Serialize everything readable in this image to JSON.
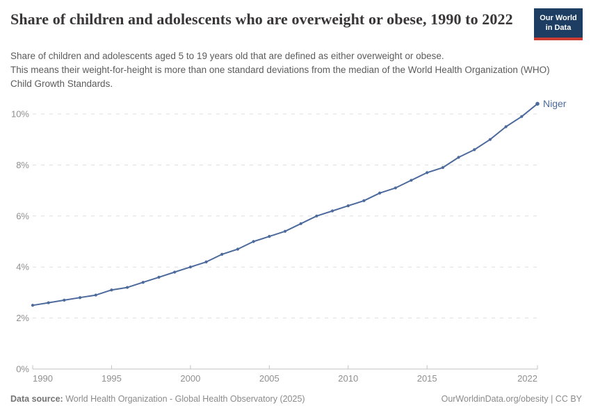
{
  "logo": {
    "line1": "Our World",
    "line2": "in Data"
  },
  "chart_data": {
    "type": "line",
    "title": "Share of children and adolescents who are overweight or obese, 1990 to 2022",
    "subtitle_lines": [
      "Share of children and adolescents aged 5 to 19 years old that are defined as either overweight or obese.",
      "This means their weight-for-height is more than one standard deviations from the median of the World Health Organization (WHO) Child Growth Standards."
    ],
    "xlim": [
      1990,
      2022
    ],
    "ylim": [
      0,
      10.4
    ],
    "grid": "horizontal-dashed",
    "legend_position": "end-of-line-label",
    "x_ticks": [
      {
        "label": "1990",
        "year": 1990
      },
      {
        "label": "1995",
        "year": 1995
      },
      {
        "label": "2000",
        "year": 2000
      },
      {
        "label": "2005",
        "year": 2005
      },
      {
        "label": "2010",
        "year": 2010
      },
      {
        "label": "2015",
        "year": 2015
      },
      {
        "label": "2022",
        "year": 2022
      }
    ],
    "y_ticks": [
      {
        "label": "0%",
        "value": 0
      },
      {
        "label": "2%",
        "value": 2
      },
      {
        "label": "4%",
        "value": 4
      },
      {
        "label": "6%",
        "value": 6
      },
      {
        "label": "8%",
        "value": 8
      },
      {
        "label": "10%",
        "value": 10
      }
    ],
    "series": [
      {
        "name": "Niger",
        "color": "#4c6a9c",
        "x": [
          1990,
          1991,
          1992,
          1993,
          1994,
          1995,
          1996,
          1997,
          1998,
          1999,
          2000,
          2001,
          2002,
          2003,
          2004,
          2005,
          2006,
          2007,
          2008,
          2009,
          2010,
          2011,
          2012,
          2013,
          2014,
          2015,
          2016,
          2017,
          2018,
          2019,
          2020,
          2021,
          2022
        ],
        "values": [
          2.5,
          2.6,
          2.7,
          2.8,
          2.9,
          3.1,
          3.2,
          3.4,
          3.6,
          3.8,
          4.0,
          4.2,
          4.5,
          4.7,
          5.0,
          5.2,
          5.4,
          5.7,
          6.0,
          6.2,
          6.4,
          6.6,
          6.9,
          7.1,
          7.4,
          7.7,
          7.9,
          8.3,
          8.6,
          9.0,
          9.5,
          9.9,
          10.4
        ]
      }
    ]
  },
  "colors": {
    "line": "#4c6a9c",
    "gridline": "#dddddd",
    "axis": "#c2c2c2",
    "tick_label": "#8f8f8f",
    "logo_bg": "#1d3d63",
    "logo_stripe": "#cc3b31"
  },
  "footer": {
    "datasource_label": "Data source:",
    "datasource_text": " World Health Organization - Global Health Observatory (2025)",
    "rights": "OurWorldinData.org/obesity | CC BY"
  }
}
